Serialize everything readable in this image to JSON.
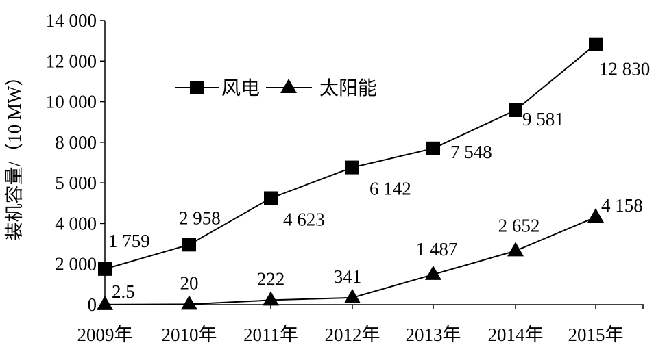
{
  "chart_data": {
    "type": "line",
    "categories": [
      "2009年",
      "2010年",
      "2011年",
      "2012年",
      "2013年",
      "2014年",
      "2015年"
    ],
    "y_ticks": [
      "0",
      "2 000",
      "4 000",
      "5 000",
      "8 000",
      "10 000",
      "12 000",
      "14 000"
    ],
    "ylabel": "装机容量/（10 MW）",
    "xlabel": "",
    "title": "",
    "grid": false,
    "legend_position": "upper-left",
    "series": [
      {
        "name": "风电",
        "marker": "square",
        "values": [
          1759,
          2958,
          4623,
          6142,
          7548,
          9581,
          12830
        ],
        "labels": [
          "1 759",
          "2 958",
          "4 623",
          "6 142",
          "7 548",
          "9 581",
          "12 830"
        ]
      },
      {
        "name": "太阳能",
        "marker": "triangle",
        "values": [
          2.5,
          20,
          222,
          341,
          1487,
          2652,
          4158
        ],
        "labels": [
          "2.5",
          "20",
          "222",
          "341",
          "1 487",
          "2 652",
          "4 158"
        ]
      }
    ]
  },
  "colors": {
    "line": "#000000",
    "background": "#ffffff"
  }
}
